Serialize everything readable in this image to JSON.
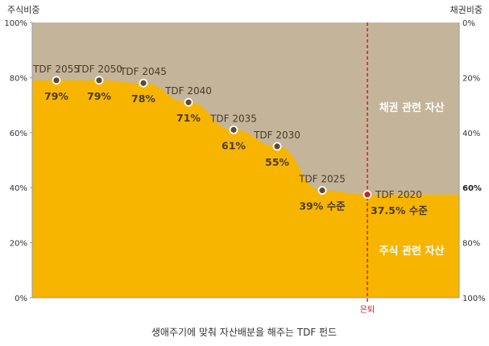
{
  "chart_data": {
    "type": "area",
    "caption": "생애주기에 맞춰 자산배분을 해주는 TDF 펀드",
    "ylabel_left": "주식비중",
    "ylabel_right": "채권비중",
    "ylim": [
      0,
      100
    ],
    "yticks_left": [
      "0%",
      "20%",
      "40%",
      "60%",
      "80%",
      "100%"
    ],
    "yticks_right": [
      "100%",
      "80%",
      "60%",
      "40%",
      "20%",
      "0%"
    ],
    "highlighted_right_tick": "60%",
    "series": [
      {
        "name": "주식 관련 자산",
        "color": "#f7b500"
      },
      {
        "name": "채권 관련 자산",
        "color": "#c4b59a"
      }
    ],
    "points": [
      {
        "label": "TDF 2055",
        "value": 79,
        "value_text": "79%"
      },
      {
        "label": "TDF 2050",
        "value": 79,
        "value_text": "79%"
      },
      {
        "label": "TDF 2045",
        "value": 78,
        "value_text": "78%"
      },
      {
        "label": "TDF 2040",
        "value": 71,
        "value_text": "71%"
      },
      {
        "label": "TDF 2035",
        "value": 61,
        "value_text": "61%"
      },
      {
        "label": "TDF 2030",
        "value": 55,
        "value_text": "55%"
      },
      {
        "label": "TDF 2025",
        "value": 39,
        "value_text": "39% 수준"
      },
      {
        "label": "TDF 2020",
        "value": 37.5,
        "value_text": "37.5% 수준",
        "highlight": true
      }
    ],
    "retirement_marker": {
      "label": "은퇴",
      "color": "#cc1f24"
    }
  }
}
